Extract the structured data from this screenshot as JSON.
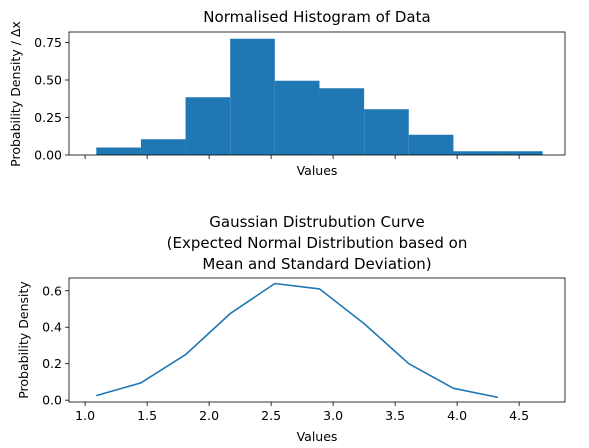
{
  "chart_data": [
    {
      "type": "bar",
      "title": "Normalised Histogram of Data",
      "xlabel": "Values",
      "ylabel": "Probability Density / Δx",
      "bin_edges": [
        1.09,
        1.45,
        1.81,
        2.17,
        2.53,
        2.89,
        3.25,
        3.61,
        3.97,
        4.33,
        4.69
      ],
      "values": [
        0.05,
        0.105,
        0.385,
        0.775,
        0.495,
        0.445,
        0.305,
        0.135,
        0.025,
        0.025
      ],
      "xlim": [
        0.87,
        4.87
      ],
      "ylim": [
        0,
        0.82
      ],
      "yticks": [
        0.0,
        0.25,
        0.5,
        0.75
      ],
      "ytick_labels": [
        "0.00",
        "0.25",
        "0.50",
        "0.75"
      ],
      "xticks": [
        1.0,
        1.5,
        2.0,
        2.5,
        3.0,
        3.5,
        4.0,
        4.5
      ],
      "color": "#1f77b4",
      "grid": false
    },
    {
      "type": "line",
      "title": "Gaussian Distrubution Curve\n(Expected Normal Distribution based on\nMean and Standard Deviation)",
      "title_lines": [
        "Gaussian Distrubution Curve",
        "(Expected Normal Distribution based on",
        "Mean and Standard Deviation)"
      ],
      "xlabel": "Values",
      "ylabel": "Probability Density",
      "x": [
        1.09,
        1.45,
        1.81,
        2.17,
        2.53,
        2.89,
        3.25,
        3.61,
        3.97,
        4.33
      ],
      "y": [
        0.025,
        0.095,
        0.25,
        0.475,
        0.64,
        0.61,
        0.42,
        0.2,
        0.065,
        0.015
      ],
      "xlim": [
        0.87,
        4.87
      ],
      "ylim": [
        -0.01,
        0.67
      ],
      "xticks": [
        1.0,
        1.5,
        2.0,
        2.5,
        3.0,
        3.5,
        4.0,
        4.5
      ],
      "xtick_labels": [
        "1.0",
        "1.5",
        "2.0",
        "2.5",
        "3.0",
        "3.5",
        "4.0",
        "4.5"
      ],
      "yticks": [
        0.0,
        0.2,
        0.4,
        0.6
      ],
      "ytick_labels": [
        "0.0",
        "0.2",
        "0.4",
        "0.6"
      ],
      "color": "#1f77b4",
      "grid": false
    }
  ]
}
